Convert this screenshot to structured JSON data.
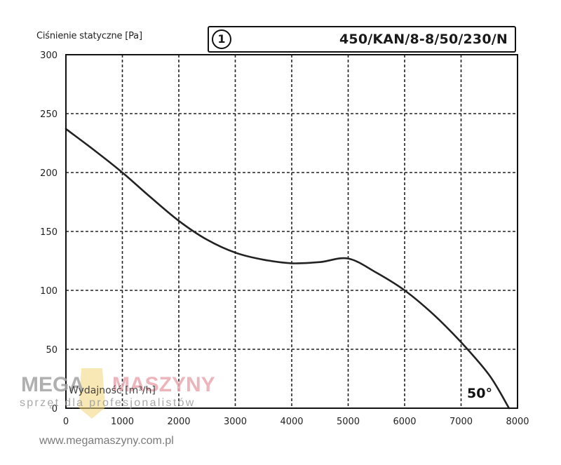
{
  "chart_data": {
    "type": "line",
    "ylabel": "Ciśnienie statyczne [Pa]",
    "xlabel": "Wydajność [m³/h]",
    "model": "450/KAN/8-8/50/230/N",
    "curve_number": "1",
    "blade_angle_label": "50°",
    "xlim": [
      0,
      8000
    ],
    "ylim": [
      0,
      300
    ],
    "x_ticks": [
      0,
      1000,
      2000,
      3000,
      4000,
      5000,
      6000,
      7000,
      8000
    ],
    "y_ticks": [
      0,
      50,
      100,
      150,
      200,
      250,
      300
    ],
    "x_tick_labels": [
      "0",
      "1000",
      "2000",
      "3000",
      "4000",
      "5000",
      "6000",
      "7000",
      "8000"
    ],
    "y_tick_labels": [
      "0",
      "50",
      "100",
      "150",
      "200",
      "250",
      "300"
    ],
    "grid": "dashed",
    "series": [
      {
        "x": [
          0,
          500,
          1000,
          1500,
          2000,
          2500,
          3000,
          3500,
          4000,
          4500,
          5000,
          5500,
          6000,
          6500,
          7000,
          7500,
          7850
        ],
        "y": [
          237,
          219,
          200,
          179,
          159,
          143,
          132,
          126,
          123,
          124,
          127,
          115,
          100,
          80,
          56,
          28,
          0
        ]
      }
    ]
  },
  "watermark": {
    "brand_mega": "MEGA",
    "brand_maszyny": "MASZYNY",
    "tagline": "sprzęt dla profesjonalistów",
    "website": "www.megamaszyny.com.pl"
  }
}
